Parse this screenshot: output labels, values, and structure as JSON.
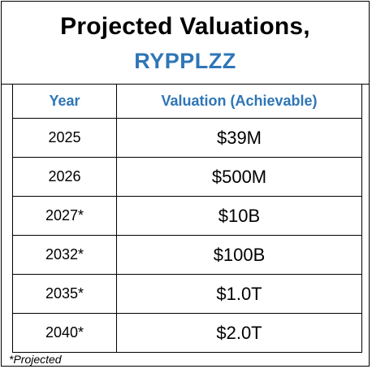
{
  "title": {
    "line1": "Projected Valuations,",
    "line2": "RYPPLZZ"
  },
  "table": {
    "headers": [
      "Year",
      "Valuation (Achievable)"
    ],
    "rows": [
      {
        "year": "2025",
        "valuation": "$39M"
      },
      {
        "year": "2026",
        "valuation": "$500M"
      },
      {
        "year": "2027*",
        "valuation": "$10B"
      },
      {
        "year": "2032*",
        "valuation": "$100B"
      },
      {
        "year": "2035*",
        "valuation": "$1.0T"
      },
      {
        "year": "2040*",
        "valuation": "$2.0T"
      }
    ]
  },
  "footnote": "*Projected",
  "colors": {
    "accent": "#2e75b6",
    "text": "#000000",
    "border": "#000000"
  }
}
